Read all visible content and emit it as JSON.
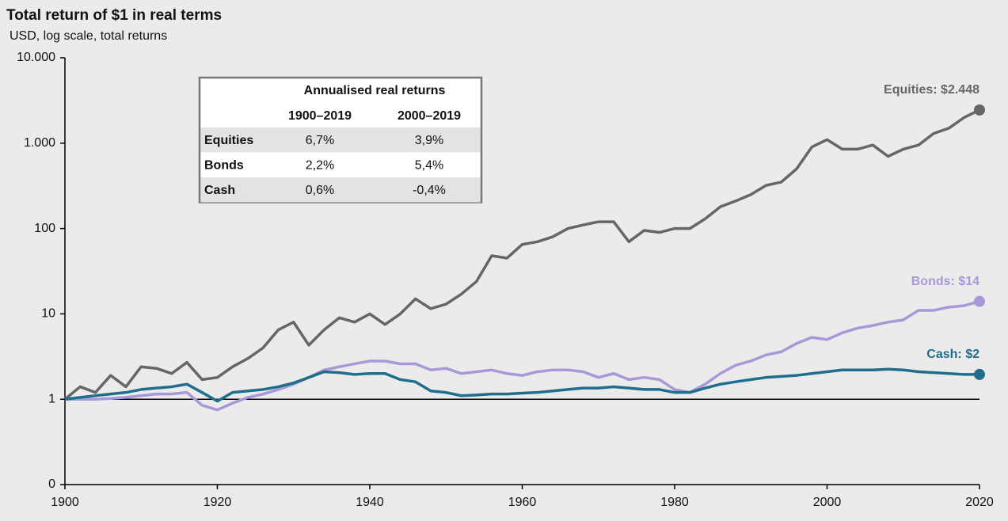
{
  "chart_data": {
    "type": "line",
    "title": "Total return of $1 in real terms",
    "subtitle": "USD, log scale, total returns",
    "log_scale": true,
    "x": [
      1900,
      1902,
      1904,
      1906,
      1908,
      1910,
      1912,
      1914,
      1916,
      1918,
      1920,
      1922,
      1924,
      1926,
      1928,
      1930,
      1932,
      1934,
      1936,
      1938,
      1940,
      1942,
      1944,
      1946,
      1948,
      1950,
      1952,
      1954,
      1956,
      1958,
      1960,
      1962,
      1964,
      1966,
      1968,
      1970,
      1972,
      1974,
      1976,
      1978,
      1980,
      1982,
      1984,
      1986,
      1988,
      1990,
      1992,
      1994,
      1996,
      1998,
      2000,
      2002,
      2004,
      2006,
      2008,
      2010,
      2012,
      2014,
      2016,
      2018,
      2020
    ],
    "xlim": [
      1900,
      2020
    ],
    "xticks": [
      1900,
      1920,
      1940,
      1960,
      1980,
      2000,
      2020
    ],
    "ylim": [
      0.1,
      10000
    ],
    "yticks": [
      {
        "value": 0.1,
        "label": "0"
      },
      1,
      10,
      100,
      {
        "value": 1000,
        "label": "1.000"
      },
      {
        "value": 10000,
        "label": "10.000"
      }
    ],
    "reference_line": 1,
    "series": [
      {
        "label": "Equities: $2.448",
        "color": "#666666",
        "values": [
          1,
          1.4,
          1.2,
          1.9,
          1.4,
          2.4,
          2.3,
          2.0,
          2.7,
          1.7,
          1.8,
          2.4,
          3.0,
          4.0,
          6.5,
          8.0,
          4.3,
          6.5,
          9,
          8,
          10,
          7.5,
          10,
          15,
          11.5,
          13,
          17,
          24,
          48,
          45,
          65,
          70,
          80,
          100,
          110,
          120,
          120,
          70,
          95,
          90,
          100,
          100,
          130,
          180,
          210,
          250,
          320,
          350,
          500,
          900,
          1100,
          850,
          850,
          950,
          700,
          850,
          950,
          1300,
          1500,
          2000,
          2448
        ]
      },
      {
        "label": "Bonds: $14",
        "color": "#a898d8",
        "values": [
          1,
          1.0,
          1.0,
          1.02,
          1.05,
          1.1,
          1.15,
          1.15,
          1.2,
          0.85,
          0.75,
          0.9,
          1.05,
          1.15,
          1.3,
          1.5,
          1.8,
          2.2,
          2.4,
          2.6,
          2.8,
          2.8,
          2.6,
          2.6,
          2.2,
          2.3,
          2.0,
          2.1,
          2.2,
          2.0,
          1.9,
          2.1,
          2.2,
          2.2,
          2.1,
          1.8,
          2.0,
          1.7,
          1.8,
          1.7,
          1.3,
          1.2,
          1.5,
          2.0,
          2.5,
          2.8,
          3.3,
          3.6,
          4.5,
          5.3,
          5.0,
          6.0,
          6.8,
          7.3,
          8.0,
          8.5,
          11,
          11,
          12,
          12.5,
          14
        ]
      },
      {
        "label": "Cash: $2",
        "color": "#1f6e8c",
        "values": [
          1,
          1.05,
          1.1,
          1.15,
          1.2,
          1.3,
          1.35,
          1.4,
          1.5,
          1.2,
          0.95,
          1.2,
          1.25,
          1.3,
          1.4,
          1.55,
          1.8,
          2.1,
          2.05,
          1.95,
          2.0,
          2.0,
          1.7,
          1.6,
          1.25,
          1.2,
          1.1,
          1.12,
          1.15,
          1.15,
          1.18,
          1.2,
          1.25,
          1.3,
          1.35,
          1.35,
          1.4,
          1.35,
          1.3,
          1.3,
          1.2,
          1.2,
          1.35,
          1.5,
          1.6,
          1.7,
          1.8,
          1.85,
          1.9,
          2.0,
          2.1,
          2.2,
          2.2,
          2.2,
          2.25,
          2.2,
          2.1,
          2.05,
          2.0,
          1.95,
          1.95
        ]
      }
    ],
    "table": {
      "title": "Annualised real returns",
      "columns": [
        "1900–2019",
        "2000–2019"
      ],
      "rows": [
        [
          "Equities",
          "6,7%",
          "3,9%"
        ],
        [
          "Bonds",
          "2,2%",
          "5,4%"
        ],
        [
          "Cash",
          "0,6%",
          "-0,4%"
        ]
      ]
    }
  }
}
